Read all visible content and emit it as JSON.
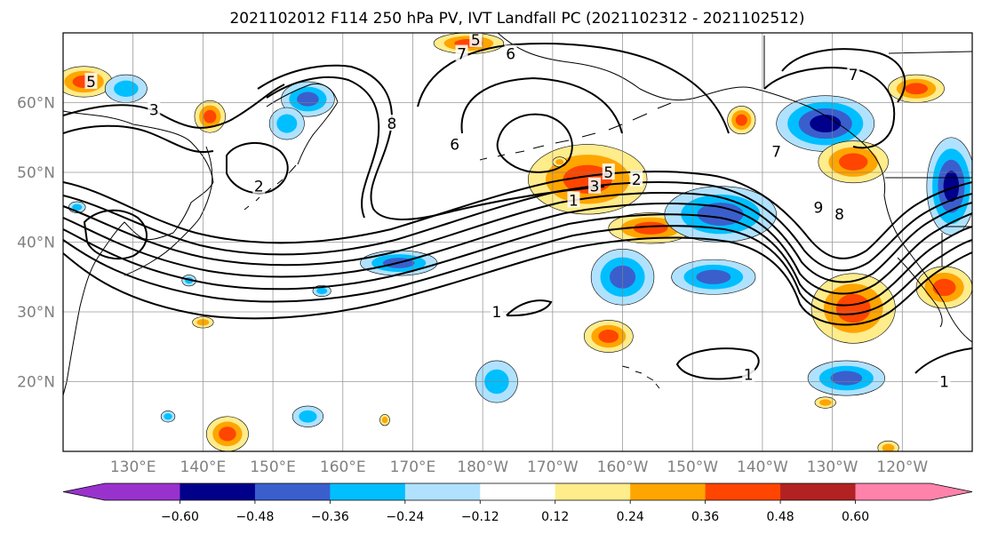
{
  "title": "2021102012 F114 250 hPa PV, IVT Landfall PC (2021102312 - 2021102512)",
  "chart_data": {
    "type": "map-contour",
    "map": {
      "lon_range": [
        120,
        -110
      ],
      "lat_range": [
        10,
        70
      ]
    },
    "gridlines": true,
    "lat_ticks": [
      {
        "lat": 20,
        "label": "20°N"
      },
      {
        "lat": 30,
        "label": "30°N"
      },
      {
        "lat": 40,
        "label": "40°N"
      },
      {
        "lat": 50,
        "label": "50°N"
      },
      {
        "lat": 60,
        "label": "60°N"
      }
    ],
    "lon_ticks": [
      {
        "lon": 130,
        "label": "130°E"
      },
      {
        "lon": 140,
        "label": "140°E"
      },
      {
        "lon": 150,
        "label": "150°E"
      },
      {
        "lon": 160,
        "label": "160°E"
      },
      {
        "lon": 170,
        "label": "170°E"
      },
      {
        "lon": 180,
        "label": "180°W"
      },
      {
        "lon": 190,
        "label": "170°W"
      },
      {
        "lon": 200,
        "label": "160°W"
      },
      {
        "lon": 210,
        "label": "150°W"
      },
      {
        "lon": 220,
        "label": "140°W"
      },
      {
        "lon": 230,
        "label": "130°W"
      },
      {
        "lon": 240,
        "label": "120°W"
      }
    ],
    "colorbar": {
      "extend": "both",
      "bounds": [
        -0.6,
        -0.48,
        -0.36,
        -0.24,
        -0.12,
        0.12,
        0.24,
        0.36,
        0.48,
        0.6
      ],
      "tick_values": [
        -0.6,
        -0.48,
        -0.36,
        -0.24,
        -0.12,
        0.12,
        0.24,
        0.36,
        0.48,
        0.6
      ],
      "tick_labels": [
        "−0.60",
        "−0.48",
        "−0.36",
        "−0.24",
        "−0.12",
        "0.12",
        "0.24",
        "0.36",
        "0.48",
        "0.60"
      ],
      "colors": [
        "#9932cc",
        "#00008b",
        "#3a5fcd",
        "#00bfff",
        "#b0e2ff",
        "#ffffff",
        "#ffec8b",
        "#ffa500",
        "#ff4500",
        "#b22222",
        "#ff82ab"
      ]
    },
    "contour_labels": [
      {
        "text": "5",
        "lon": 124,
        "lat": 63
      },
      {
        "text": "3",
        "lon": 133,
        "lat": 59
      },
      {
        "text": "2",
        "lon": 148,
        "lat": 48
      },
      {
        "text": "5",
        "lon": 179,
        "lat": 69
      },
      {
        "text": "7",
        "lon": 177,
        "lat": 67
      },
      {
        "text": "6",
        "lon": 184,
        "lat": 67
      },
      {
        "text": "8",
        "lon": 167,
        "lat": 57
      },
      {
        "text": "6",
        "lon": 176,
        "lat": 54
      },
      {
        "text": "5",
        "lon": 198,
        "lat": 50
      },
      {
        "text": "3",
        "lon": 196,
        "lat": 48
      },
      {
        "text": "2",
        "lon": 202,
        "lat": 49
      },
      {
        "text": "1",
        "lon": 193,
        "lat": 46
      },
      {
        "text": "7",
        "lon": 222,
        "lat": 53
      },
      {
        "text": "7",
        "lon": 233,
        "lat": 64
      },
      {
        "text": "9",
        "lon": 228,
        "lat": 45
      },
      {
        "text": "8",
        "lon": 231,
        "lat": 44
      },
      {
        "text": "1",
        "lon": 182,
        "lat": 30
      },
      {
        "text": "1",
        "lon": 218,
        "lat": 21
      },
      {
        "text": "1",
        "lon": 246,
        "lat": 20
      }
    ],
    "shaded_fields": [
      {
        "lon": 123,
        "lat": 63,
        "rx": 4,
        "ry": 2.2,
        "value": 0.38
      },
      {
        "lon": 129,
        "lat": 62,
        "rx": 3,
        "ry": 2,
        "value": -0.3
      },
      {
        "lon": 141,
        "lat": 58,
        "rx": 2.2,
        "ry": 2.3,
        "value": 0.4
      },
      {
        "lon": 155,
        "lat": 60.5,
        "rx": 3.8,
        "ry": 2.5,
        "value": -0.4
      },
      {
        "lon": 152,
        "lat": 57,
        "rx": 2.5,
        "ry": 2.3,
        "value": -0.3
      },
      {
        "lon": 122,
        "lat": 45,
        "rx": 1.2,
        "ry": 0.8,
        "value": -0.3
      },
      {
        "lon": 138,
        "lat": 34.5,
        "rx": 1,
        "ry": 0.8,
        "value": -0.3
      },
      {
        "lon": 157,
        "lat": 33,
        "rx": 1.3,
        "ry": 0.8,
        "value": -0.3
      },
      {
        "lon": 168,
        "lat": 37,
        "rx": 5.5,
        "ry": 1.8,
        "value": -0.4
      },
      {
        "lon": 140,
        "lat": 28.5,
        "rx": 1.5,
        "ry": 0.8,
        "value": 0.3
      },
      {
        "lon": 195,
        "lat": 49,
        "rx": 8.5,
        "ry": 5,
        "value": 0.45
      },
      {
        "lon": 204,
        "lat": 42,
        "rx": 6,
        "ry": 2.2,
        "value": 0.4
      },
      {
        "lon": 191,
        "lat": 51.5,
        "rx": 1,
        "ry": 0.7,
        "value": 0.3
      },
      {
        "lon": 214,
        "lat": 44,
        "rx": 8,
        "ry": 4,
        "value": -0.42
      },
      {
        "lon": 200,
        "lat": 35,
        "rx": 4.5,
        "ry": 4,
        "value": -0.42
      },
      {
        "lon": 213,
        "lat": 35,
        "rx": 6,
        "ry": 2.5,
        "value": -0.4
      },
      {
        "lon": 198,
        "lat": 26.5,
        "rx": 3.5,
        "ry": 2.3,
        "value": 0.4
      },
      {
        "lon": 182,
        "lat": 20,
        "rx": 3,
        "ry": 3,
        "value": -0.3
      },
      {
        "lon": 217,
        "lat": 57.5,
        "rx": 2,
        "ry": 2,
        "value": 0.4
      },
      {
        "lon": 229,
        "lat": 57,
        "rx": 7,
        "ry": 4,
        "value": -0.5
      },
      {
        "lon": 233,
        "lat": 51.5,
        "rx": 5,
        "ry": 3,
        "value": 0.45
      },
      {
        "lon": 233,
        "lat": 30.5,
        "rx": 6,
        "ry": 5,
        "value": 0.45
      },
      {
        "lon": 246,
        "lat": 33.5,
        "rx": 4,
        "ry": 3,
        "value": 0.4
      },
      {
        "lon": 247,
        "lat": 48,
        "rx": 3.5,
        "ry": 7,
        "value": -0.55
      },
      {
        "lon": 242,
        "lat": 62,
        "rx": 4,
        "ry": 2,
        "value": 0.4
      },
      {
        "lon": 232,
        "lat": 20.5,
        "rx": 5.5,
        "ry": 2.5,
        "value": -0.4
      },
      {
        "lon": 229,
        "lat": 17,
        "rx": 1.5,
        "ry": 0.8,
        "value": 0.3
      },
      {
        "lon": 143.5,
        "lat": 12.5,
        "rx": 3,
        "ry": 2.5,
        "value": 0.45
      },
      {
        "lon": 155,
        "lat": 15,
        "rx": 2.2,
        "ry": 1.5,
        "value": -0.3
      },
      {
        "lon": 135,
        "lat": 15,
        "rx": 1,
        "ry": 0.8,
        "value": -0.3
      },
      {
        "lon": 166,
        "lat": 14.5,
        "rx": 0.7,
        "ry": 0.8,
        "value": 0.3
      },
      {
        "lon": 178,
        "lat": 68.5,
        "rx": 5,
        "ry": 1.5,
        "value": 0.4
      },
      {
        "lon": 238,
        "lat": 10.5,
        "rx": 1.5,
        "ry": 1,
        "value": 0.3
      }
    ]
  }
}
